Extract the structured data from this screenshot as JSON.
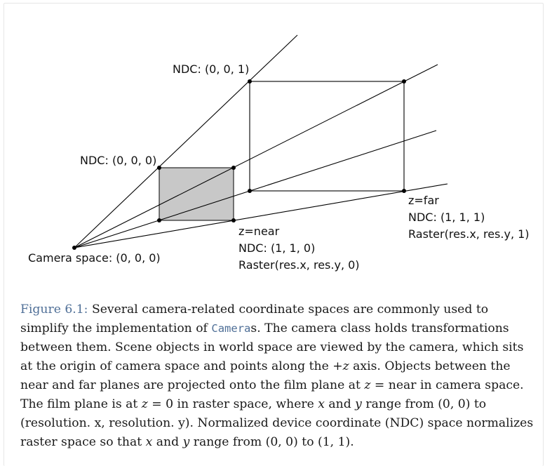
{
  "diagram": {
    "labels": {
      "ndc_001": "NDC: (0, 0, 1)",
      "ndc_000": "NDC: (0, 0, 0)",
      "camera_space": "Camera space: (0, 0, 0)",
      "near_z": "z=near",
      "near_ndc": "NDC: (1, 1, 0)",
      "near_raster": "Raster(res.x, res.y, 0)",
      "far_z": "z=far",
      "far_ndc": "NDC: (1, 1, 1)",
      "far_raster": "Raster(res.x, res.y, 1)"
    },
    "colors": {
      "near_plane_fill": "#c8c8c8",
      "line": "#000000"
    }
  },
  "caption": {
    "figure_ref": "Figure 6.1:",
    "t1": " Several camera-related coordinate spaces are commonly used to simplify the implementation of ",
    "code_camera": "Camera",
    "t2": "s. The camera class holds transformations between them. Scene objects in world space are viewed by the camera, which sits at the origin of camera space and points along the ",
    "axis": "+z",
    "t3": " axis. Objects between the near and far planes are projected onto the film plane at ",
    "eq_near_lhs": "z",
    "eq_near_op": " = ",
    "eq_near_rhs": "near",
    "t4": " in camera space. The film plane is at ",
    "eq_zero_lhs": "z",
    "eq_zero_op": " = ",
    "eq_zero_rhs": "0",
    "t5": " in raster space, where ",
    "x1": "x",
    "t6": " and ",
    "y1": "y",
    "t7": " range from ",
    "range_origin_1": "(0, 0)",
    "t8": " to ",
    "range_res": "(resolution. x, resolution. y)",
    "t9": ". Normalized device coordinate (NDC) space normalizes raster space so that ",
    "x2": "x",
    "t10": " and ",
    "y2": "y",
    "t11": " range from ",
    "range_origin_2": "(0, 0)",
    "t12": " to ",
    "range_one": "(1, 1)",
    "t13": "."
  }
}
